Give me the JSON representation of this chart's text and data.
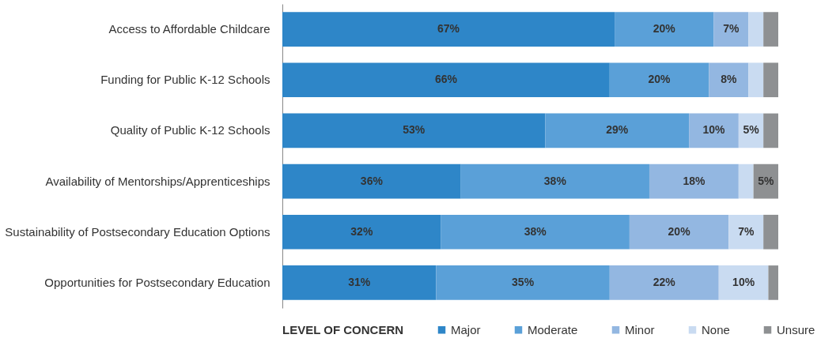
{
  "chart_data": {
    "type": "bar",
    "orientation": "horizontal",
    "stacked": true,
    "legend": "bottom",
    "legend_title": "LEVEL OF CONCERN",
    "tick_labels": "y",
    "grid": false,
    "xlim": [
      0,
      100
    ],
    "categories": [
      "Access to Affordable Childcare",
      "Funding for Public K-12 Schools",
      "Quality of Public K-12 Schools",
      "Availability of Mentorships/Apprenticeships",
      "Sustainability of Postsecondary Education Options",
      "Opportunities for Postsecondary Education"
    ],
    "series": [
      {
        "name": "Major",
        "color": "#2e86c8",
        "values": [
          67,
          66,
          53,
          36,
          32,
          31
        ],
        "value_labels": [
          "67%",
          "66%",
          "53%",
          "36%",
          "32%",
          "31%"
        ]
      },
      {
        "name": "Moderate",
        "color": "#5aa0d8",
        "values": [
          20,
          20,
          29,
          38,
          38,
          35
        ],
        "value_labels": [
          "20%",
          "20%",
          "29%",
          "38%",
          "38%",
          "35%"
        ]
      },
      {
        "name": "Minor",
        "color": "#93b7e1",
        "values": [
          7,
          8,
          10,
          18,
          20,
          22
        ],
        "value_labels": [
          "7%",
          "8%",
          "10%",
          "18%",
          "20%",
          "22%"
        ]
      },
      {
        "name": "None",
        "color": "#c9dbf1",
        "values": [
          3,
          3,
          5,
          3,
          7,
          10
        ],
        "value_labels": [
          null,
          null,
          "5%",
          null,
          "7%",
          "10%"
        ]
      },
      {
        "name": "Unsure",
        "color": "#8e9092",
        "values": [
          3,
          3,
          3,
          5,
          3,
          2
        ],
        "value_labels": [
          null,
          null,
          null,
          "5%",
          null,
          null
        ]
      }
    ]
  }
}
